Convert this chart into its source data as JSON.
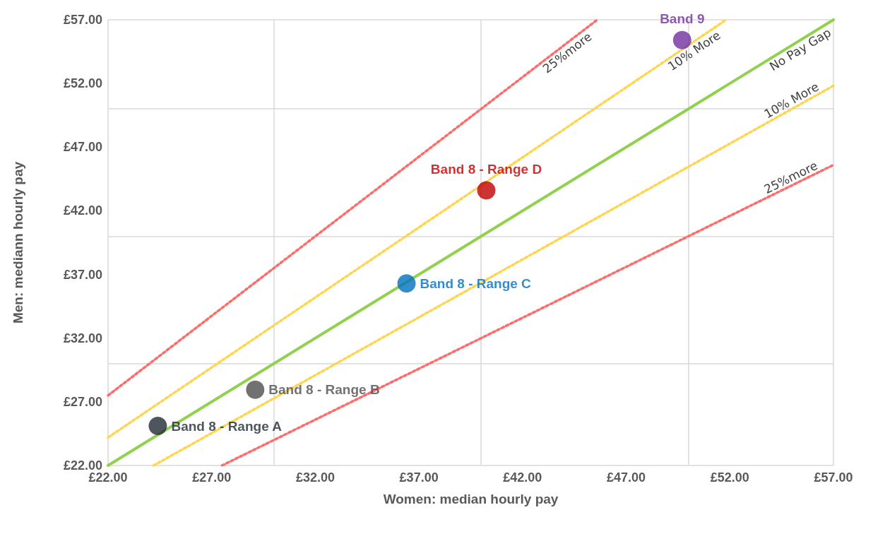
{
  "chart_data": {
    "type": "scatter",
    "xlabel": "Women: median hourly pay",
    "ylabel": "Men: mediann hourly pay",
    "xlim": [
      22,
      57
    ],
    "ylim": [
      22,
      57
    ],
    "xticks": [
      {
        "value": 22,
        "label": "£22.00"
      },
      {
        "value": 27,
        "label": "£27.00"
      },
      {
        "value": 32,
        "label": "£32.00"
      },
      {
        "value": 37,
        "label": "£37.00"
      },
      {
        "value": 42,
        "label": "£42.00"
      },
      {
        "value": 47,
        "label": "£47.00"
      },
      {
        "value": 52,
        "label": "£52.00"
      },
      {
        "value": 57,
        "label": "£57.00"
      }
    ],
    "yticks": [
      {
        "value": 22,
        "label": "£22.00"
      },
      {
        "value": 27,
        "label": "£27.00"
      },
      {
        "value": 32,
        "label": "£32.00"
      },
      {
        "value": 37,
        "label": "£37.00"
      },
      {
        "value": 42,
        "label": "£42.00"
      },
      {
        "value": 47,
        "label": "£47.00"
      },
      {
        "value": 52,
        "label": "£52.00"
      },
      {
        "value": 57,
        "label": "£57.00"
      }
    ],
    "grid": true,
    "legend": false,
    "marker": "circle",
    "series": [
      {
        "type": "line",
        "marker": "none",
        "color": "#ff6b6b",
        "line_style": "dotted",
        "x": [
          22,
          45.6
        ],
        "values": [
          27.5,
          57
        ]
      },
      {
        "type": "line",
        "marker": "none",
        "color": "#ffd54f",
        "line_style": "dotted",
        "x": [
          22,
          51.82
        ],
        "values": [
          24.2,
          57
        ]
      },
      {
        "type": "line",
        "marker": "none",
        "color": "#92d050",
        "line_style": "solid",
        "x": [
          22,
          57
        ],
        "values": [
          22,
          57
        ]
      },
      {
        "type": "line",
        "marker": "none",
        "color": "#ffd54f",
        "line_style": "dotted",
        "x": [
          24.2,
          57
        ],
        "values": [
          22,
          51.82
        ]
      },
      {
        "type": "line",
        "marker": "none",
        "color": "#ff6b6b",
        "line_style": "dotted",
        "x": [
          27.5,
          57
        ],
        "values": [
          22,
          45.6
        ]
      },
      {
        "name": "Band 8 - Range A",
        "color": "#222a35",
        "x": [
          24.4
        ],
        "values": [
          25.1
        ]
      },
      {
        "name": "Band 8 - Range B",
        "color": "#4d4d4d",
        "x": [
          29.1
        ],
        "values": [
          27.95
        ]
      },
      {
        "name": "Band 8 - Range C",
        "color": "#0070c0",
        "x": [
          36.4
        ],
        "values": [
          36.3
        ]
      },
      {
        "name": "Band 8 - Range D",
        "color": "#c00000",
        "x": [
          40.25
        ],
        "values": [
          43.6
        ]
      },
      {
        "name": "Band 9",
        "color": "#7030a0",
        "x": [
          49.7
        ],
        "values": [
          55.4
        ]
      }
    ],
    "annotations": [
      "25%more",
      "10% More",
      "No Pay Gap",
      "10% More",
      "25%more"
    ]
  }
}
